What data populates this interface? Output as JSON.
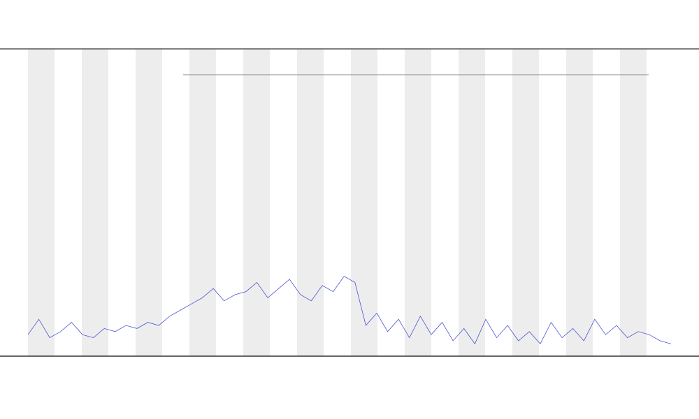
{
  "chart_data": {
    "type": "line",
    "x": [
      0,
      1,
      2,
      3,
      4,
      5,
      6,
      7,
      8,
      9,
      10,
      11,
      12,
      13,
      14,
      15,
      16,
      17,
      18,
      19,
      20,
      21,
      22,
      23,
      24,
      25,
      26,
      27,
      28,
      29,
      30,
      31,
      32,
      33,
      34,
      35,
      36,
      37,
      38,
      39,
      40,
      41,
      42,
      43,
      44,
      45,
      46,
      47,
      48,
      49,
      50,
      51,
      52,
      53,
      54,
      55,
      56,
      57,
      58,
      59
    ],
    "xlim": [
      0,
      59
    ],
    "ylim": [
      0,
      100
    ],
    "series": [
      {
        "color": "#4a55d6",
        "values": [
          7,
          12,
          6,
          8,
          11,
          7,
          6,
          9,
          8,
          10,
          9,
          11,
          10,
          13,
          15,
          17,
          19,
          22,
          18,
          20,
          21,
          24,
          19,
          22,
          25,
          20,
          18,
          23,
          21,
          26,
          24,
          10,
          14,
          8,
          12,
          6,
          13,
          7,
          11,
          5,
          9,
          4,
          12,
          6,
          10,
          5,
          8,
          4,
          11,
          6,
          9,
          5,
          12,
          7,
          10,
          6,
          8,
          7,
          5,
          4
        ]
      }
    ]
  }
}
